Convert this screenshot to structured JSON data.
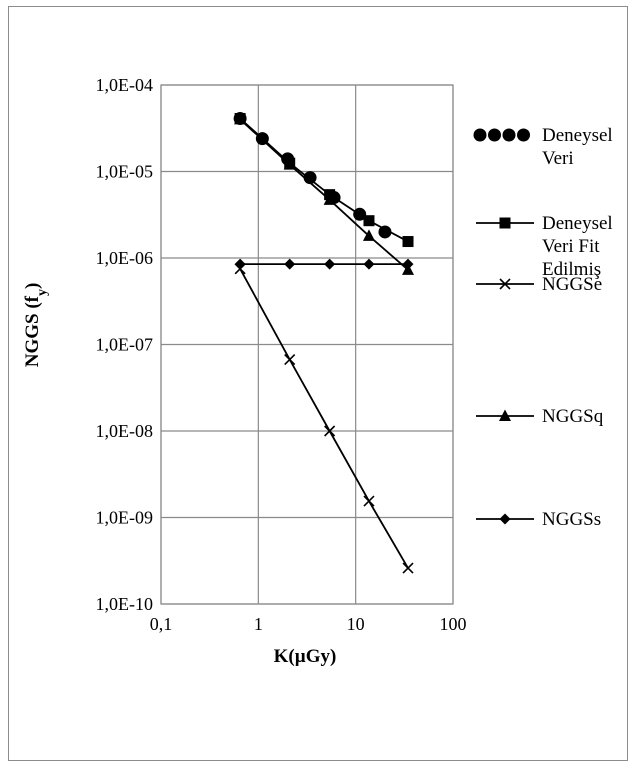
{
  "chart_data": {
    "type": "line",
    "title": "",
    "xlabel": "K(µGy)",
    "ylabel": {
      "main": "NGGS (f",
      "sub": "y",
      "close": ")"
    },
    "x_scale": "log",
    "y_scale": "log",
    "xlim": [
      0.1,
      100
    ],
    "ylim": [
      1e-10,
      0.0001
    ],
    "grid": true,
    "legend": "right",
    "x_ticks": [
      {
        "value": 0.1,
        "label": "0,1"
      },
      {
        "value": 1,
        "label": "1"
      },
      {
        "value": 10,
        "label": "10"
      },
      {
        "value": 100,
        "label": "100"
      }
    ],
    "y_ticks": [
      {
        "value": 0.0001,
        "label": "1,0E-04"
      },
      {
        "value": 1e-05,
        "label": "1,0E-05"
      },
      {
        "value": 1e-06,
        "label": "1,0E-06"
      },
      {
        "value": 1e-07,
        "label": "1,0E-07"
      },
      {
        "value": 1e-08,
        "label": "1,0E-08"
      },
      {
        "value": 1e-09,
        "label": "1,0E-09"
      },
      {
        "value": 1e-10,
        "label": "1,0E-10"
      }
    ],
    "series": [
      {
        "name": "Deneysel Veri",
        "legend_lines": [
          "Deneysel",
          "Veri"
        ],
        "marker": "circle",
        "line": "none",
        "x": [
          0.65,
          1.1,
          2.0,
          3.4,
          6.0,
          11.0,
          20.0
        ],
        "y": [
          4.1e-05,
          2.4e-05,
          1.4e-05,
          8.5e-06,
          5e-06,
          3.2e-06,
          2e-06
        ]
      },
      {
        "name": "Deneysel Veri Fit Edilmiş",
        "legend_lines": [
          "Deneysel",
          "Veri Fit",
          "Edilmiş"
        ],
        "marker": "square",
        "line": "solid",
        "x": [
          0.65,
          2.1,
          5.4,
          13.7,
          34.5
        ],
        "y": [
          4.1e-05,
          1.25e-05,
          5.4e-06,
          2.7e-06,
          1.55e-06
        ]
      },
      {
        "name": "NGGSe",
        "legend_lines": [
          "NGGSe"
        ],
        "marker": "x",
        "line": "solid",
        "x": [
          0.65,
          2.1,
          5.4,
          13.7,
          34.5
        ],
        "y": [
          7.5e-07,
          6.7e-08,
          1e-08,
          1.55e-09,
          2.6e-10
        ]
      },
      {
        "name": "NGGSq",
        "legend_lines": [
          "NGGSq"
        ],
        "marker": "triangle",
        "line": "solid",
        "x": [
          0.65,
          2.1,
          5.4,
          13.7,
          34.5
        ],
        "y": [
          4e-05,
          1.2e-05,
          4.7e-06,
          1.8e-06,
          7.3e-07
        ]
      },
      {
        "name": "NGGSs",
        "legend_lines": [
          "NGGSs"
        ],
        "marker": "diamond",
        "line": "solid",
        "x": [
          0.65,
          2.1,
          5.4,
          13.7,
          34.5
        ],
        "y": [
          8.5e-07,
          8.5e-07,
          8.5e-07,
          8.5e-07,
          8.5e-07
        ]
      }
    ]
  }
}
